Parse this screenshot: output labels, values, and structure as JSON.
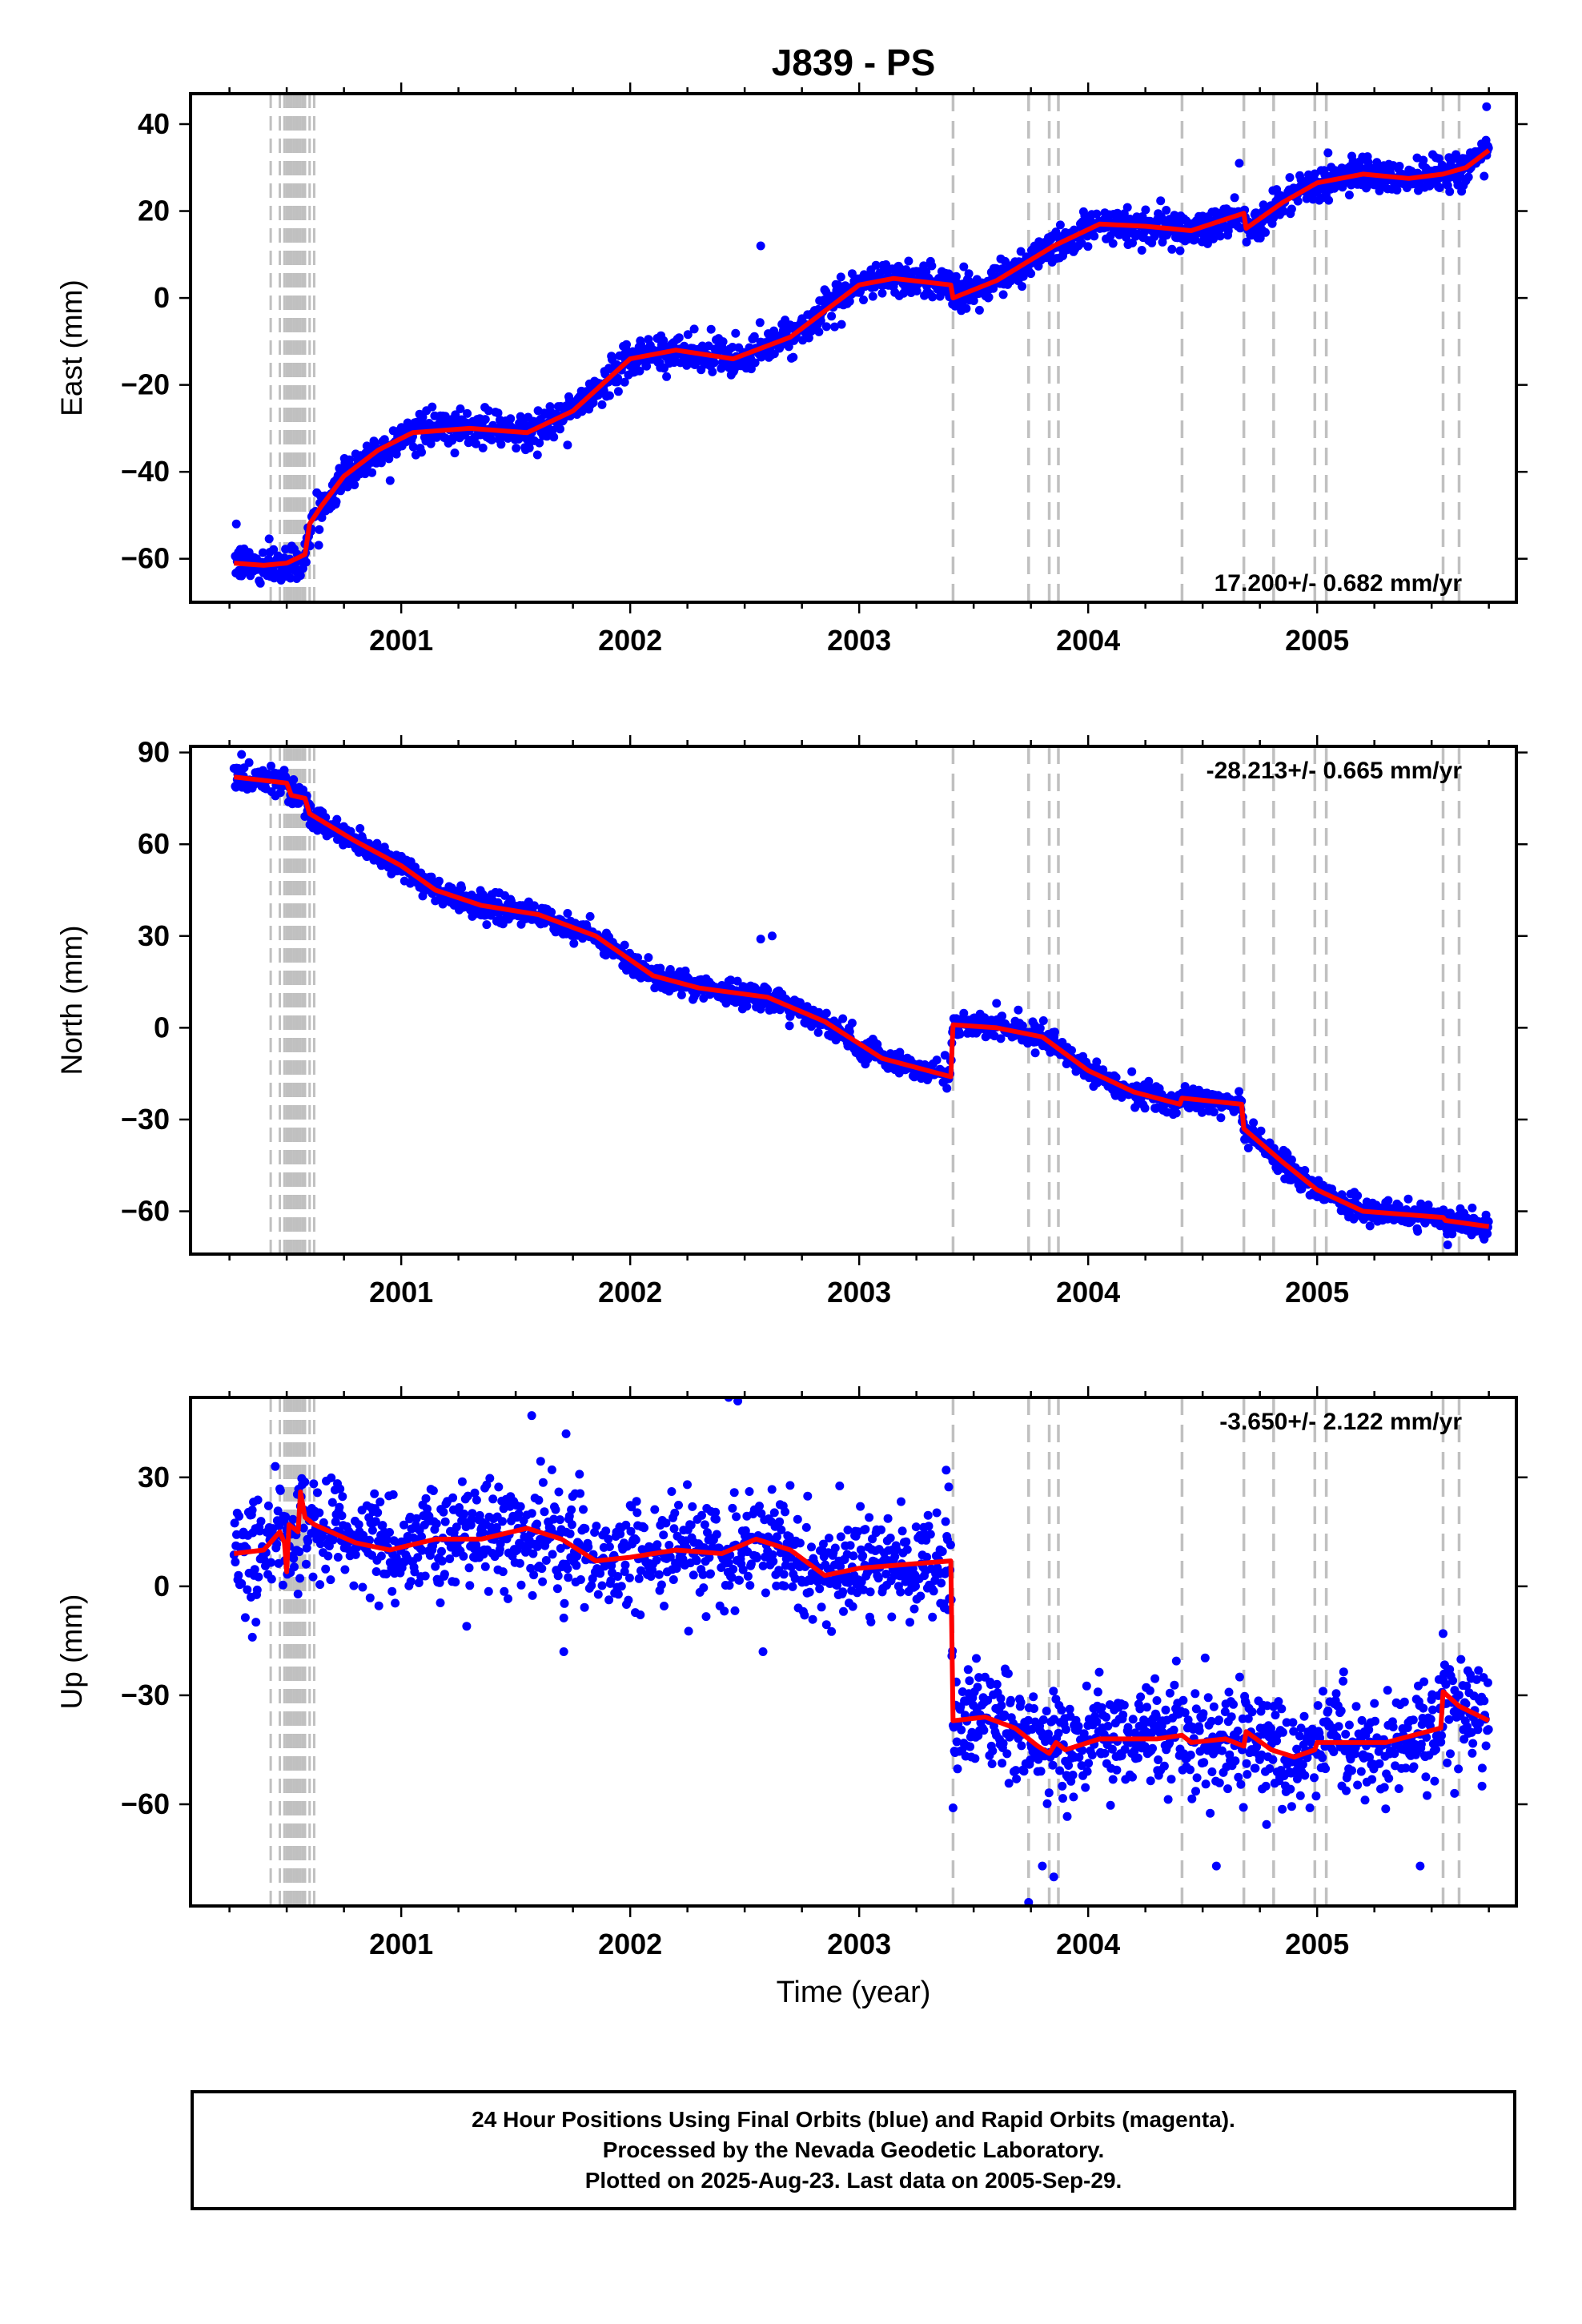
{
  "title": "J839 - PS",
  "xlabel": "Time (year)",
  "colors": {
    "final_orbits": "#0000ff",
    "rapid_orbits": "#ff00ff",
    "model": "#ff0000",
    "event_lines": "#c0c0c0",
    "frame": "#000000"
  },
  "footer": {
    "line1": "24 Hour Positions Using Final Orbits (blue) and Rapid Orbits (magenta).",
    "line2": "Processed by the Nevada Geodetic Laboratory.",
    "line3": "Plotted on 2025-Aug-23. Last data on 2005-Sep-29."
  },
  "chart_data": [
    {
      "type": "scatter",
      "panel": "east",
      "ylabel": "East (mm)",
      "rate_label": "17.200+/- 0.682 mm/yr",
      "rate_label_position": "bottom-right",
      "xlim": [
        2000.08,
        2005.87
      ],
      "ylim": [
        -70,
        47
      ],
      "x_ticks": [
        2001,
        2002,
        2003,
        2004,
        2005
      ],
      "y_ticks": [
        -60,
        -40,
        -20,
        0,
        20,
        40
      ],
      "noise_mm": 2.0,
      "event_lines_gray": [
        2000.43,
        2000.47,
        2000.49,
        2000.5,
        2000.51,
        2000.52,
        2000.53,
        2000.54,
        2000.55,
        2000.56,
        2000.57,
        2000.58,
        2000.6,
        2000.62
      ],
      "event_lines_dashed": [
        2003.41,
        2003.74,
        2003.83,
        2003.87,
        2004.41,
        2004.68,
        2004.81,
        2004.99,
        2005.04,
        2005.55,
        2005.62
      ],
      "model": [
        {
          "x": 2000.27,
          "y": -61
        },
        {
          "x": 2000.4,
          "y": -61.5
        },
        {
          "x": 2000.5,
          "y": -61
        },
        {
          "x": 2000.58,
          "y": -59
        },
        {
          "x": 2000.6,
          "y": -52
        },
        {
          "x": 2000.65,
          "y": -48
        },
        {
          "x": 2000.75,
          "y": -41
        },
        {
          "x": 2000.9,
          "y": -35
        },
        {
          "x": 2001.05,
          "y": -31
        },
        {
          "x": 2001.3,
          "y": -30
        },
        {
          "x": 2001.55,
          "y": -31
        },
        {
          "x": 2001.75,
          "y": -26
        },
        {
          "x": 2002.0,
          "y": -14
        },
        {
          "x": 2002.2,
          "y": -12
        },
        {
          "x": 2002.45,
          "y": -14
        },
        {
          "x": 2002.7,
          "y": -9
        },
        {
          "x": 2003.0,
          "y": 3
        },
        {
          "x": 2003.15,
          "y": 4.5
        },
        {
          "x": 2003.4,
          "y": 3
        },
        {
          "x": 2003.41,
          "y": 0
        },
        {
          "x": 2003.6,
          "y": 4
        },
        {
          "x": 2003.85,
          "y": 12
        },
        {
          "x": 2004.05,
          "y": 17
        },
        {
          "x": 2004.25,
          "y": 16.5
        },
        {
          "x": 2004.45,
          "y": 15.5
        },
        {
          "x": 2004.68,
          "y": 19.5
        },
        {
          "x": 2004.69,
          "y": 16
        },
        {
          "x": 2004.85,
          "y": 22
        },
        {
          "x": 2005.0,
          "y": 26.5
        },
        {
          "x": 2005.2,
          "y": 28.5
        },
        {
          "x": 2005.4,
          "y": 27.5
        },
        {
          "x": 2005.55,
          "y": 28.5
        },
        {
          "x": 2005.65,
          "y": 30
        },
        {
          "x": 2005.75,
          "y": 34
        }
      ],
      "outliers": [
        {
          "x": 2002.57,
          "y": 12
        },
        {
          "x": 2004.66,
          "y": 31
        },
        {
          "x": 2005.74,
          "y": 44
        },
        {
          "x": 2000.28,
          "y": -52
        }
      ]
    },
    {
      "type": "scatter",
      "panel": "north",
      "ylabel": "North (mm)",
      "rate_label": "-28.213+/- 0.665 mm/yr",
      "rate_label_position": "top-right",
      "xlim": [
        2000.08,
        2005.87
      ],
      "ylim": [
        -74,
        92
      ],
      "x_ticks": [
        2001,
        2002,
        2003,
        2004,
        2005
      ],
      "y_ticks": [
        -60,
        -30,
        0,
        30,
        60,
        90
      ],
      "noise_mm": 2.0,
      "event_lines_gray": [
        2000.43,
        2000.47,
        2000.49,
        2000.5,
        2000.51,
        2000.52,
        2000.53,
        2000.54,
        2000.55,
        2000.56,
        2000.57,
        2000.58,
        2000.6,
        2000.62
      ],
      "event_lines_dashed": [
        2003.41,
        2003.74,
        2003.83,
        2003.87,
        2004.41,
        2004.68,
        2004.81,
        2004.99,
        2005.04,
        2005.55,
        2005.62
      ],
      "model": [
        {
          "x": 2000.27,
          "y": 82
        },
        {
          "x": 2000.5,
          "y": 80
        },
        {
          "x": 2000.52,
          "y": 76
        },
        {
          "x": 2000.58,
          "y": 75
        },
        {
          "x": 2000.6,
          "y": 70
        },
        {
          "x": 2000.8,
          "y": 61
        },
        {
          "x": 2001.0,
          "y": 53
        },
        {
          "x": 2001.15,
          "y": 45
        },
        {
          "x": 2001.35,
          "y": 40
        },
        {
          "x": 2001.6,
          "y": 37
        },
        {
          "x": 2001.85,
          "y": 30
        },
        {
          "x": 2002.1,
          "y": 17
        },
        {
          "x": 2002.3,
          "y": 13
        },
        {
          "x": 2002.6,
          "y": 10
        },
        {
          "x": 2002.85,
          "y": 2
        },
        {
          "x": 2003.1,
          "y": -10
        },
        {
          "x": 2003.4,
          "y": -16
        },
        {
          "x": 2003.41,
          "y": 1
        },
        {
          "x": 2003.6,
          "y": 0
        },
        {
          "x": 2003.8,
          "y": -3
        },
        {
          "x": 2004.0,
          "y": -14
        },
        {
          "x": 2004.2,
          "y": -21
        },
        {
          "x": 2004.4,
          "y": -25
        },
        {
          "x": 2004.41,
          "y": -23
        },
        {
          "x": 2004.67,
          "y": -25
        },
        {
          "x": 2004.68,
          "y": -33
        },
        {
          "x": 2004.85,
          "y": -44
        },
        {
          "x": 2005.0,
          "y": -53
        },
        {
          "x": 2005.2,
          "y": -60
        },
        {
          "x": 2005.55,
          "y": -62
        },
        {
          "x": 2005.56,
          "y": -63
        },
        {
          "x": 2005.75,
          "y": -65
        }
      ],
      "outliers": [
        {
          "x": 2002.57,
          "y": 29
        },
        {
          "x": 2002.62,
          "y": 30
        },
        {
          "x": 2003.6,
          "y": 8
        },
        {
          "x": 2005.57,
          "y": -71
        }
      ]
    },
    {
      "type": "scatter",
      "panel": "up",
      "ylabel": "Up (mm)",
      "rate_label": "-3.650+/- 2.122 mm/yr",
      "rate_label_position": "top-right",
      "xlim": [
        2000.08,
        2005.87
      ],
      "ylim": [
        -88,
        52
      ],
      "x_ticks": [
        2001,
        2002,
        2003,
        2004,
        2005
      ],
      "y_ticks": [
        -60,
        -30,
        0,
        30
      ],
      "noise_mm": 7.0,
      "event_lines_gray": [
        2000.43,
        2000.47,
        2000.49,
        2000.5,
        2000.51,
        2000.52,
        2000.53,
        2000.54,
        2000.55,
        2000.56,
        2000.57,
        2000.58,
        2000.6,
        2000.62
      ],
      "event_lines_dashed": [
        2003.41,
        2003.74,
        2003.83,
        2003.87,
        2004.41,
        2004.68,
        2004.81,
        2004.99,
        2005.04,
        2005.55,
        2005.62
      ],
      "model": [
        {
          "x": 2000.27,
          "y": 9
        },
        {
          "x": 2000.4,
          "y": 10
        },
        {
          "x": 2000.47,
          "y": 15
        },
        {
          "x": 2000.49,
          "y": 12
        },
        {
          "x": 2000.5,
          "y": 4
        },
        {
          "x": 2000.51,
          "y": 17
        },
        {
          "x": 2000.55,
          "y": 15
        },
        {
          "x": 2000.56,
          "y": 26
        },
        {
          "x": 2000.58,
          "y": 19
        },
        {
          "x": 2000.62,
          "y": 17
        },
        {
          "x": 2000.8,
          "y": 12
        },
        {
          "x": 2000.95,
          "y": 10
        },
        {
          "x": 2001.15,
          "y": 13
        },
        {
          "x": 2001.35,
          "y": 13
        },
        {
          "x": 2001.55,
          "y": 16
        },
        {
          "x": 2001.7,
          "y": 13
        },
        {
          "x": 2001.85,
          "y": 7
        },
        {
          "x": 2002.0,
          "y": 8
        },
        {
          "x": 2002.2,
          "y": 10
        },
        {
          "x": 2002.4,
          "y": 9
        },
        {
          "x": 2002.55,
          "y": 13
        },
        {
          "x": 2002.7,
          "y": 10
        },
        {
          "x": 2002.85,
          "y": 3
        },
        {
          "x": 2003.0,
          "y": 5
        },
        {
          "x": 2003.2,
          "y": 6
        },
        {
          "x": 2003.4,
          "y": 7
        },
        {
          "x": 2003.41,
          "y": -37
        },
        {
          "x": 2003.55,
          "y": -36
        },
        {
          "x": 2003.68,
          "y": -39
        },
        {
          "x": 2003.78,
          "y": -44
        },
        {
          "x": 2003.83,
          "y": -46
        },
        {
          "x": 2003.86,
          "y": -43
        },
        {
          "x": 2003.9,
          "y": -45
        },
        {
          "x": 2004.05,
          "y": -42
        },
        {
          "x": 2004.3,
          "y": -42
        },
        {
          "x": 2004.41,
          "y": -41
        },
        {
          "x": 2004.45,
          "y": -43
        },
        {
          "x": 2004.6,
          "y": -42
        },
        {
          "x": 2004.68,
          "y": -44
        },
        {
          "x": 2004.69,
          "y": -40
        },
        {
          "x": 2004.8,
          "y": -45
        },
        {
          "x": 2004.9,
          "y": -47
        },
        {
          "x": 2004.99,
          "y": -45
        },
        {
          "x": 2005.0,
          "y": -43
        },
        {
          "x": 2005.3,
          "y": -43
        },
        {
          "x": 2005.54,
          "y": -39
        },
        {
          "x": 2005.55,
          "y": -29
        },
        {
          "x": 2005.62,
          "y": -33
        },
        {
          "x": 2005.75,
          "y": -37
        }
      ],
      "outliers": [
        {
          "x": 2000.35,
          "y": -14
        },
        {
          "x": 2000.45,
          "y": 33
        },
        {
          "x": 2001.57,
          "y": 47
        },
        {
          "x": 2001.72,
          "y": 42
        },
        {
          "x": 2002.43,
          "y": 52
        },
        {
          "x": 2002.47,
          "y": 51
        },
        {
          "x": 2002.58,
          "y": -18
        },
        {
          "x": 2001.71,
          "y": -18
        },
        {
          "x": 2003.38,
          "y": 32
        },
        {
          "x": 2003.41,
          "y": -61
        },
        {
          "x": 2003.74,
          "y": -87
        },
        {
          "x": 2003.8,
          "y": -77
        },
        {
          "x": 2003.85,
          "y": -80
        },
        {
          "x": 2004.56,
          "y": -77
        },
        {
          "x": 2005.45,
          "y": -77
        },
        {
          "x": 2005.55,
          "y": -13
        },
        {
          "x": 2005.6,
          "y": -57
        },
        {
          "x": 2005.72,
          "y": -55
        }
      ]
    }
  ]
}
